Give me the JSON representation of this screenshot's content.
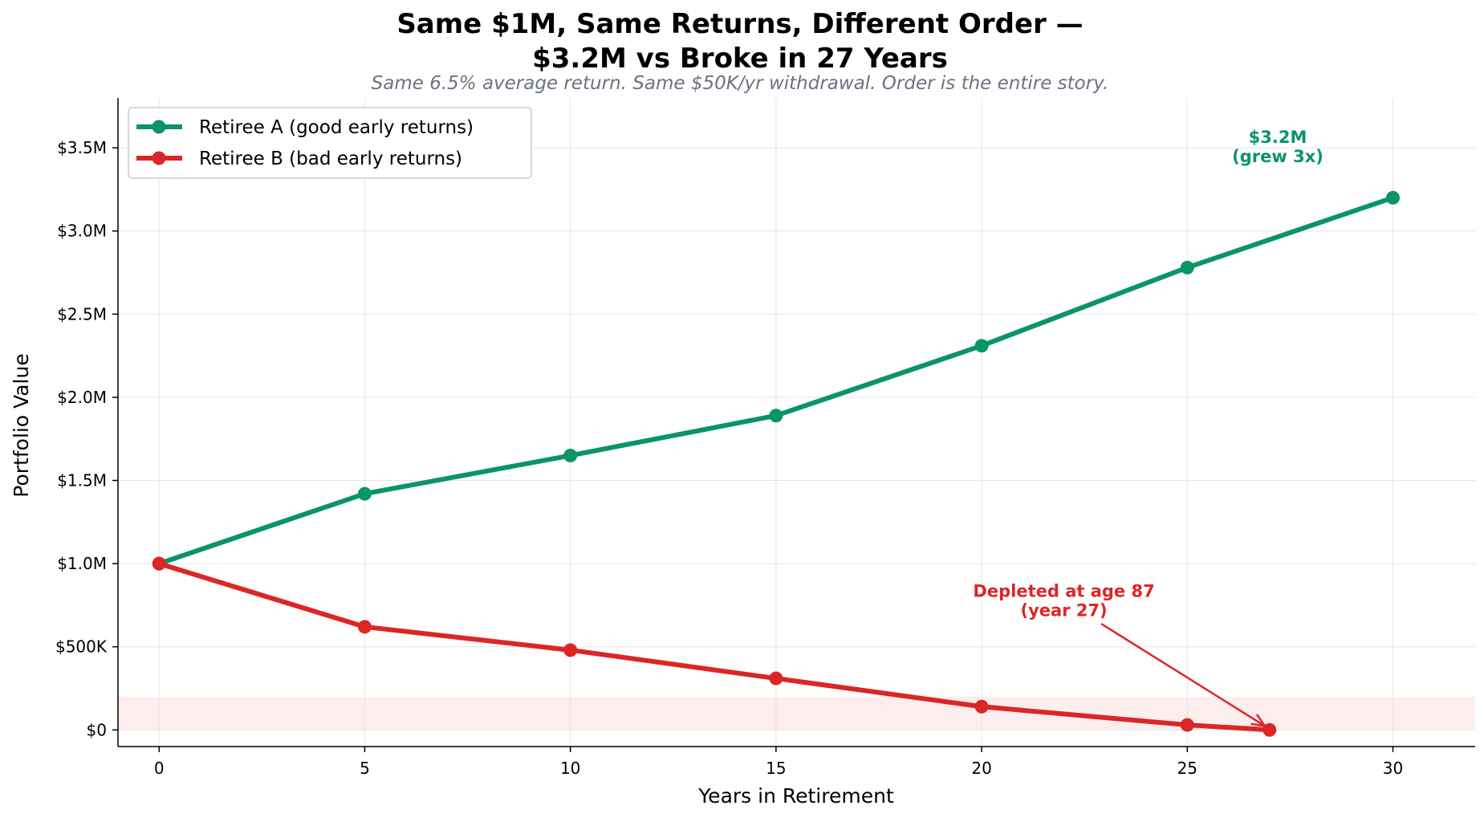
{
  "title_line1": "Same $1M, Same Returns, Different Order —",
  "title_line2": "$3.2M vs Broke in 27 Years",
  "subtitle": "Same 6.5% average return. Same $50K/yr withdrawal. Order is the entire story.",
  "chart_data": {
    "type": "line",
    "xlabel": "Years in Retirement",
    "ylabel": "Portfolio Value",
    "xlim": [
      -1,
      32
    ],
    "ylim": [
      -100000,
      3800000
    ],
    "x_ticks": [
      0,
      5,
      10,
      15,
      20,
      25,
      30
    ],
    "x_tick_labels": [
      "0",
      "5",
      "10",
      "15",
      "20",
      "25",
      "30"
    ],
    "y_ticks": [
      0,
      500000,
      1000000,
      1500000,
      2000000,
      2500000,
      3000000,
      3500000
    ],
    "y_tick_labels": [
      "$0",
      "$500K",
      "$1.0M",
      "$1.5M",
      "$2.0M",
      "$2.5M",
      "$3.0M",
      "$3.5M"
    ],
    "grid": true,
    "legend_position": "top-left",
    "danger_zone": {
      "y_min": 0,
      "y_max": 200000,
      "color": "#fdeeee"
    },
    "series": [
      {
        "name": "Retiree A (good early returns)",
        "color": "#0a9468",
        "x": [
          0,
          5,
          10,
          15,
          20,
          25,
          30
        ],
        "y": [
          1000000,
          1420000,
          1650000,
          1890000,
          2310000,
          2780000,
          3200000
        ]
      },
      {
        "name": "Retiree B (bad early returns)",
        "color": "#dc2626",
        "x": [
          0,
          5,
          10,
          15,
          20,
          25,
          27
        ],
        "y": [
          1000000,
          620000,
          480000,
          310000,
          140000,
          30000,
          0
        ]
      }
    ],
    "annotations": [
      {
        "lines": [
          "$3.2M",
          "(grew 3x)"
        ],
        "x": 27.2,
        "y": 3530000,
        "color": "#0a9468"
      },
      {
        "lines": [
          "Depleted at age 87",
          "(year 27)"
        ],
        "x": 22,
        "y": 800000,
        "color": "#dc2626",
        "arrow_to": [
          27,
          0
        ]
      }
    ]
  }
}
